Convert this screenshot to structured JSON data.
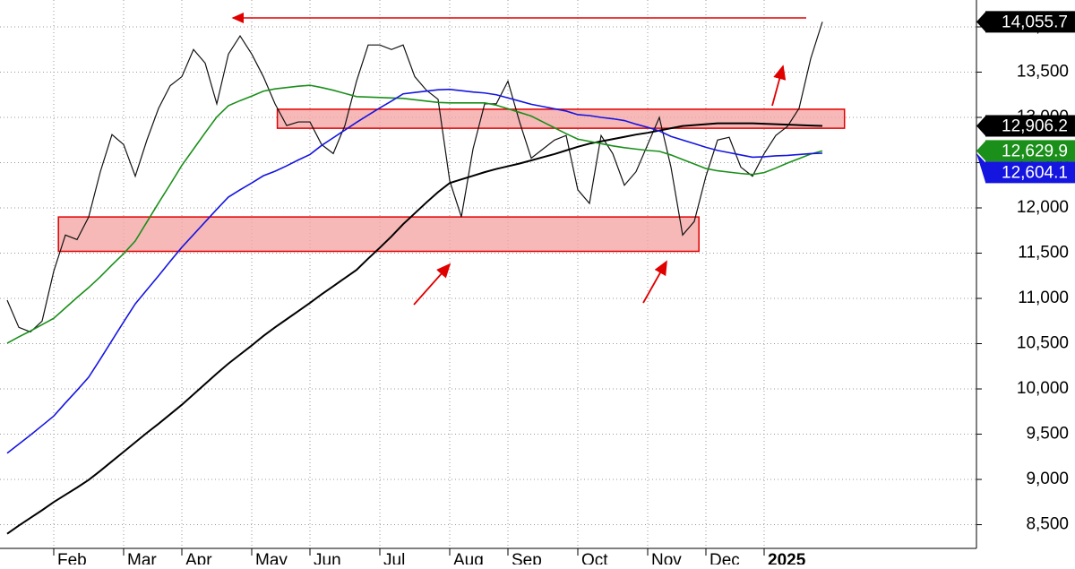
{
  "chart_data": {
    "type": "line",
    "categories": [
      null,
      null,
      null,
      null,
      "Feb",
      null,
      null,
      null,
      null,
      null,
      "Mar",
      null,
      null,
      null,
      null,
      "Apr",
      null,
      null,
      null,
      null,
      null,
      "May",
      null,
      null,
      null,
      null,
      "Jun",
      null,
      null,
      null,
      null,
      null,
      "Jul",
      null,
      null,
      null,
      null,
      null,
      "Aug",
      null,
      null,
      null,
      null,
      "Sep",
      null,
      null,
      null,
      null,
      null,
      "Oct",
      null,
      null,
      null,
      null,
      null,
      "Nov",
      null,
      null,
      null,
      null,
      "Dec",
      null,
      null,
      null,
      null,
      "2025",
      null,
      null,
      null,
      null,
      null
    ],
    "series": [
      {
        "color": "#111111",
        "width": 1.2,
        "values": [
          10980,
          10680,
          10630,
          10750,
          11300,
          11700,
          11650,
          11900,
          12400,
          12810,
          12700,
          12350,
          12750,
          13100,
          13350,
          13450,
          13750,
          13600,
          13150,
          13700,
          13900,
          13700,
          13450,
          13150,
          12910,
          12950,
          12950,
          12700,
          12600,
          12910,
          13400,
          13800,
          13800,
          13750,
          13800,
          13450,
          13300,
          13200,
          12300,
          11900,
          12650,
          13150,
          13150,
          13400,
          12950,
          12550,
          12650,
          12750,
          12800,
          12200,
          12050,
          12800,
          12600,
          12250,
          12400,
          12700,
          13000,
          12450,
          11700,
          11850,
          12350,
          12750,
          12780,
          12450,
          12350,
          12600,
          12800,
          12900,
          13100,
          13650,
          14055.7
        ]
      },
      {
        "color": "#000000",
        "width": 2,
        "values": [
          8400,
          8490,
          8575,
          8660,
          8750,
          8830,
          8910,
          8995,
          9095,
          9200,
          9305,
          9410,
          9515,
          9615,
          9720,
          9825,
          9940,
          10055,
          10170,
          10280,
          10380,
          10480,
          10585,
          10680,
          10770,
          10860,
          10950,
          11045,
          11135,
          11225,
          11315,
          11440,
          11560,
          11685,
          11820,
          11940,
          12060,
          12175,
          12275,
          12315,
          12355,
          12395,
          12430,
          12460,
          12490,
          12525,
          12560,
          12595,
          12635,
          12675,
          12710,
          12735,
          12760,
          12785,
          12810,
          12830,
          12855,
          12880,
          12905,
          12915,
          12925,
          12935,
          12935,
          12935,
          12935,
          12930,
          12925,
          12920,
          12915,
          12910,
          12906.2
        ]
      },
      {
        "color": "#1a8f1a",
        "width": 1.6,
        "values": [
          10505,
          10575,
          10640,
          10710,
          10780,
          10895,
          11010,
          11120,
          11240,
          11370,
          11495,
          11635,
          11845,
          12055,
          12260,
          12470,
          12650,
          12830,
          13005,
          13130,
          13185,
          13235,
          13290,
          13315,
          13330,
          13345,
          13355,
          13330,
          13300,
          13265,
          13230,
          13225,
          13220,
          13215,
          13210,
          13195,
          13180,
          13165,
          13160,
          13160,
          13160,
          13160,
          13135,
          13095,
          13055,
          13015,
          12950,
          12885,
          12820,
          12760,
          12735,
          12710,
          12685,
          12665,
          12650,
          12635,
          12625,
          12585,
          12535,
          12485,
          12435,
          12410,
          12395,
          12380,
          12370,
          12390,
          12440,
          12495,
          12545,
          12595,
          12629.9
        ]
      },
      {
        "color": "#1515e0",
        "width": 1.6,
        "values": [
          9290,
          9390,
          9490,
          9595,
          9700,
          9845,
          9985,
          10130,
          10330,
          10535,
          10740,
          10940,
          11095,
          11250,
          11410,
          11565,
          11705,
          11845,
          11985,
          12120,
          12200,
          12275,
          12355,
          12405,
          12465,
          12530,
          12590,
          12690,
          12775,
          12860,
          12945,
          13025,
          13105,
          13180,
          13260,
          13275,
          13290,
          13305,
          13310,
          13295,
          13280,
          13270,
          13250,
          13215,
          13180,
          13145,
          13120,
          13095,
          13070,
          13030,
          13020,
          13000,
          12985,
          12965,
          12925,
          12890,
          12850,
          12790,
          12750,
          12710,
          12670,
          12635,
          12610,
          12585,
          12560,
          12565,
          12575,
          12580,
          12590,
          12600,
          12604.1
        ]
      }
    ],
    "price_tags": [
      {
        "value": 14055.7,
        "label": "14,055.7",
        "color": "#000000"
      },
      {
        "value": 12906.2,
        "label": "12,906.2",
        "color": "#000000"
      },
      {
        "value": 12629.9,
        "label": "12,629.9",
        "color": "#1a8f1a"
      },
      {
        "value": 12604.1,
        "label": "12,604.1",
        "color": "#1515e0"
      }
    ],
    "zones": [
      {
        "ylim": [
          11520,
          11900
        ],
        "span": [
          4.4,
          59.4
        ],
        "color": "#f4a0a0"
      },
      {
        "ylim": [
          12880,
          13090
        ],
        "span": [
          23.2,
          71.9
        ],
        "color": "#f4a0a0"
      }
    ],
    "ylim": [
      8238,
      14297
    ],
    "yticks": [
      {
        "value": 8500,
        "label": "8,500"
      },
      {
        "value": 9000,
        "label": "9,000"
      },
      {
        "value": 9500,
        "label": "9,500"
      },
      {
        "value": 10000,
        "label": "10,000"
      },
      {
        "value": 10500,
        "label": "10,500"
      },
      {
        "value": 11000,
        "label": "11,000"
      },
      {
        "value": 11500,
        "label": "11,500"
      },
      {
        "value": 12000,
        "label": "12,000"
      },
      {
        "value": 12500,
        "label": "12,500"
      },
      {
        "value": 13000,
        "label": "13,000"
      },
      {
        "value": 13500,
        "label": "13,500"
      },
      {
        "value": 14000,
        "label": "14,000"
      }
    ],
    "grid": true
  }
}
